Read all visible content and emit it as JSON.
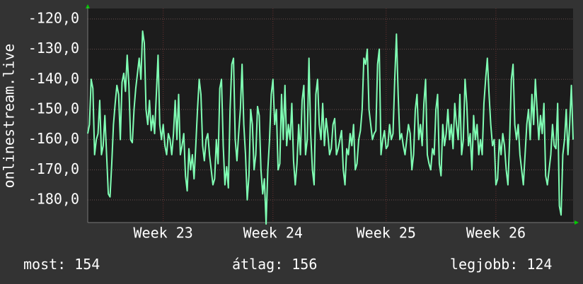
{
  "chart_data": {
    "type": "line",
    "y_label": "onlinestream.live",
    "color": "#80ffb4",
    "grid": true,
    "ylim": [
      -187.5,
      -116.5
    ],
    "yticks": [
      {
        "value": -120,
        "label": "-120,0"
      },
      {
        "value": -130,
        "label": "-130,0"
      },
      {
        "value": -140,
        "label": "-140,0"
      },
      {
        "value": -150,
        "label": "-150,0"
      },
      {
        "value": -160,
        "label": "-160,0"
      },
      {
        "value": -170,
        "label": "-170,0"
      },
      {
        "value": -180,
        "label": "-180,0"
      }
    ],
    "xlim": [
      0,
      283
    ],
    "xticks": [
      {
        "value": 44,
        "label": "Week 23"
      },
      {
        "value": 108,
        "label": "Week 24"
      },
      {
        "value": 174,
        "label": "Week 25"
      },
      {
        "value": 238,
        "label": "Week 26"
      }
    ],
    "values": [
      -158,
      -155,
      -140,
      -143,
      -165,
      -160,
      -158,
      -147,
      -165,
      -162,
      -152,
      -165,
      -178,
      -179,
      -168,
      -155,
      -148,
      -142,
      -145,
      -160,
      -141,
      -138,
      -144,
      -132,
      -142,
      -160,
      -161,
      -150,
      -143,
      -138,
      -133,
      -140,
      -124,
      -128,
      -150,
      -155,
      -147,
      -157,
      -152,
      -158,
      -145,
      -132,
      -155,
      -160,
      -155,
      -162,
      -165,
      -158,
      -160,
      -165,
      -158,
      -147,
      -160,
      -145,
      -165,
      -162,
      -158,
      -172,
      -177,
      -163,
      -170,
      -165,
      -173,
      -162,
      -150,
      -140,
      -145,
      -162,
      -167,
      -160,
      -158,
      -165,
      -170,
      -175,
      -173,
      -160,
      -168,
      -143,
      -140,
      -162,
      -175,
      -169,
      -176,
      -150,
      -135,
      -133,
      -160,
      -167,
      -158,
      -150,
      -135,
      -155,
      -165,
      -180,
      -172,
      -150,
      -155,
      -170,
      -165,
      -149,
      -152,
      -170,
      -178,
      -173,
      -188,
      -170,
      -160,
      -145,
      -140,
      -155,
      -150,
      -170,
      -168,
      -145,
      -160,
      -142,
      -162,
      -155,
      -160,
      -148,
      -167,
      -175,
      -168,
      -155,
      -165,
      -147,
      -142,
      -165,
      -160,
      -133,
      -158,
      -170,
      -175,
      -145,
      -140,
      -155,
      -160,
      -148,
      -162,
      -153,
      -158,
      -165,
      -163,
      -155,
      -153,
      -165,
      -163,
      -160,
      -157,
      -170,
      -175,
      -163,
      -165,
      -158,
      -162,
      -155,
      -170,
      -168,
      -160,
      -157,
      -150,
      -133,
      -135,
      -130,
      -150,
      -155,
      -160,
      -158,
      -157,
      -135,
      -130,
      -165,
      -160,
      -157,
      -163,
      -162,
      -155,
      -160,
      -158,
      -140,
      -125,
      -145,
      -160,
      -158,
      -162,
      -165,
      -160,
      -155,
      -158,
      -170,
      -165,
      -150,
      -145,
      -160,
      -155,
      -162,
      -148,
      -140,
      -165,
      -168,
      -170,
      -163,
      -165,
      -150,
      -145,
      -168,
      -172,
      -155,
      -162,
      -158,
      -150,
      -160,
      -155,
      -163,
      -148,
      -155,
      -160,
      -145,
      -165,
      -160,
      -140,
      -148,
      -162,
      -158,
      -170,
      -152,
      -160,
      -155,
      -165,
      -160,
      -165,
      -148,
      -140,
      -133,
      -145,
      -155,
      -162,
      -160,
      -175,
      -173,
      -160,
      -165,
      -158,
      -162,
      -170,
      -175,
      -160,
      -140,
      -135,
      -155,
      -160,
      -155,
      -165,
      -170,
      -175,
      -165,
      -155,
      -150,
      -160,
      -145,
      -155,
      -140,
      -150,
      -160,
      -152,
      -158,
      -148,
      -172,
      -175,
      -170,
      -165,
      -155,
      -162,
      -163,
      -148,
      -182,
      -185,
      -165,
      -160,
      -150,
      -165,
      -155,
      -142,
      -160
    ],
    "footer": [
      {
        "label": "most:",
        "value": 154
      },
      {
        "label": "átlag:",
        "value": 156
      },
      {
        "label": "legjobb:",
        "value": 124
      }
    ]
  }
}
